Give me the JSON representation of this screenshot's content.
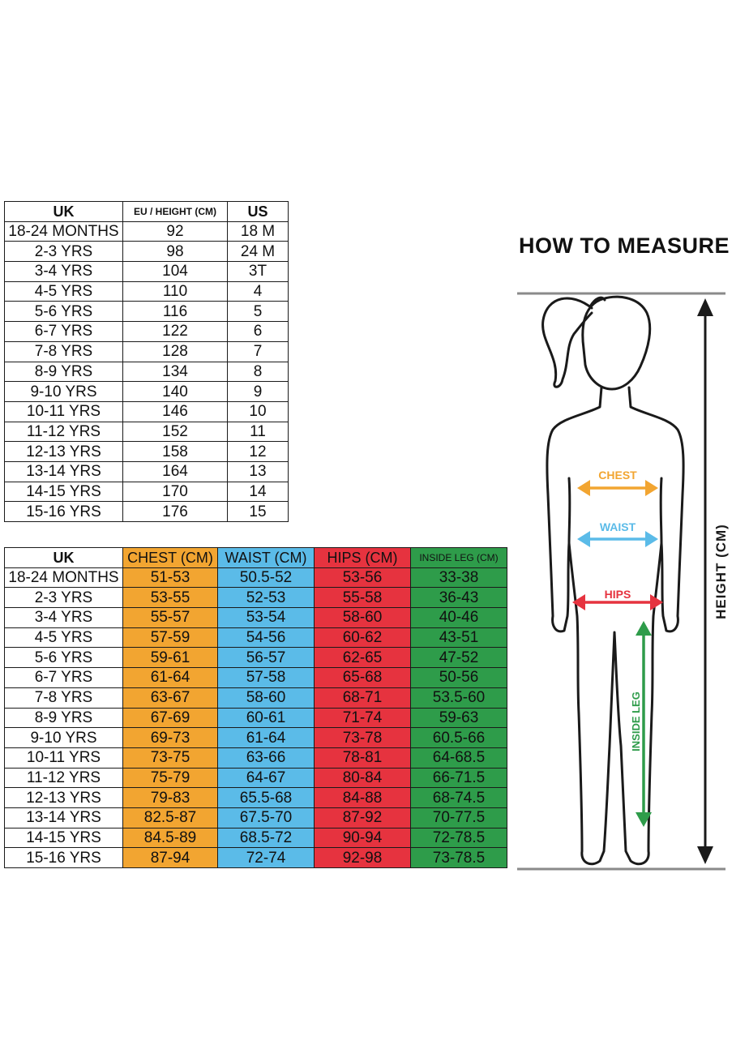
{
  "size_table": {
    "headers": [
      "UK",
      "EU / HEIGHT (CM)",
      "US"
    ],
    "rows": [
      [
        "18-24 MONTHS",
        "92",
        "18 M"
      ],
      [
        "2-3 YRS",
        "98",
        "24 M"
      ],
      [
        "3-4 YRS",
        "104",
        "3T"
      ],
      [
        "4-5 YRS",
        "110",
        "4"
      ],
      [
        "5-6 YRS",
        "116",
        "5"
      ],
      [
        "6-7 YRS",
        "122",
        "6"
      ],
      [
        "7-8 YRS",
        "128",
        "7"
      ],
      [
        "8-9 YRS",
        "134",
        "8"
      ],
      [
        "9-10 YRS",
        "140",
        "9"
      ],
      [
        "10-11 YRS",
        "146",
        "10"
      ],
      [
        "11-12 YRS",
        "152",
        "11"
      ],
      [
        "12-13 YRS",
        "158",
        "12"
      ],
      [
        "13-14 YRS",
        "164",
        "13"
      ],
      [
        "14-15 YRS",
        "170",
        "14"
      ],
      [
        "15-16 YRS",
        "176",
        "15"
      ]
    ]
  },
  "measure_table": {
    "headers": [
      "UK",
      "CHEST (CM)",
      "WAIST (CM)",
      "HIPS (CM)",
      "INSIDE LEG (CM)"
    ],
    "colors": {
      "chest": "#F2A531",
      "waist": "#5BBBE8",
      "hips": "#E6333F",
      "inside_leg": "#2E9C4A"
    },
    "rows": [
      [
        "18-24 MONTHS",
        "51-53",
        "50.5-52",
        "53-56",
        "33-38"
      ],
      [
        "2-3 YRS",
        "53-55",
        "52-53",
        "55-58",
        "36-43"
      ],
      [
        "3-4 YRS",
        "55-57",
        "53-54",
        "58-60",
        "40-46"
      ],
      [
        "4-5 YRS",
        "57-59",
        "54-56",
        "60-62",
        "43-51"
      ],
      [
        "5-6 YRS",
        "59-61",
        "56-57",
        "62-65",
        "47-52"
      ],
      [
        "6-7 YRS",
        "61-64",
        "57-58",
        "65-68",
        "50-56"
      ],
      [
        "7-8 YRS",
        "63-67",
        "58-60",
        "68-71",
        "53.5-60"
      ],
      [
        "8-9 YRS",
        "67-69",
        "60-61",
        "71-74",
        "59-63"
      ],
      [
        "9-10 YRS",
        "69-73",
        "61-64",
        "73-78",
        "60.5-66"
      ],
      [
        "10-11 YRS",
        "73-75",
        "63-66",
        "78-81",
        "64-68.5"
      ],
      [
        "11-12 YRS",
        "75-79",
        "64-67",
        "80-84",
        "66-71.5"
      ],
      [
        "12-13 YRS",
        "79-83",
        "65.5-68",
        "84-88",
        "68-74.5"
      ],
      [
        "13-14 YRS",
        "82.5-87",
        "67.5-70",
        "87-92",
        "70-77.5"
      ],
      [
        "14-15 YRS",
        "84.5-89",
        "68.5-72",
        "90-94",
        "72-78.5"
      ],
      [
        "15-16 YRS",
        "87-94",
        "72-74",
        "92-98",
        "73-78.5"
      ]
    ]
  },
  "how_to_measure": {
    "title": "HOW TO MEASURE",
    "labels": {
      "chest": "CHEST",
      "waist": "WAIST",
      "hips": "HIPS",
      "inside_leg": "INSIDE LEG",
      "height": "HEIGHT (CM)"
    }
  }
}
